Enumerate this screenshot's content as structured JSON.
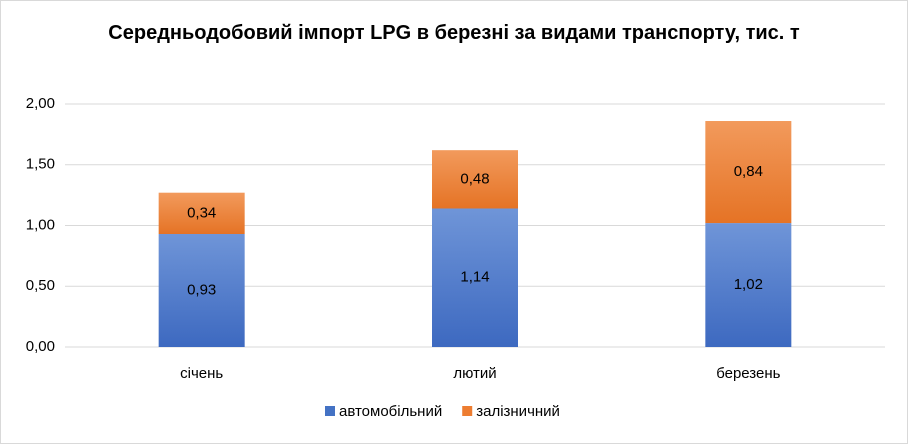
{
  "chart_data": {
    "type": "stacked_bar",
    "title": "Середньодобовий імпорт LPG в березні за видами транспорту, тис. т",
    "categories": [
      "січень",
      "лютий",
      "березень"
    ],
    "series": [
      {
        "name": "автомобільний",
        "color": "#4472c4",
        "values": [
          0.93,
          1.14,
          1.02
        ],
        "value_labels": [
          "0,93",
          "1,14",
          "1,02"
        ]
      },
      {
        "name": "залізничний",
        "color": "#ed7d31",
        "values": [
          0.34,
          0.48,
          0.84
        ],
        "value_labels": [
          "0,34",
          "0,48",
          "0,84"
        ]
      }
    ],
    "ylim": [
      0,
      2
    ],
    "yticks": [
      {
        "value": 0,
        "label": "0,00"
      },
      {
        "value": 0.5,
        "label": "0,50"
      },
      {
        "value": 1,
        "label": "1,00"
      },
      {
        "value": 1.5,
        "label": "1,50"
      },
      {
        "value": 2,
        "label": "2,00"
      }
    ],
    "grid": true,
    "legend": "bottom"
  }
}
